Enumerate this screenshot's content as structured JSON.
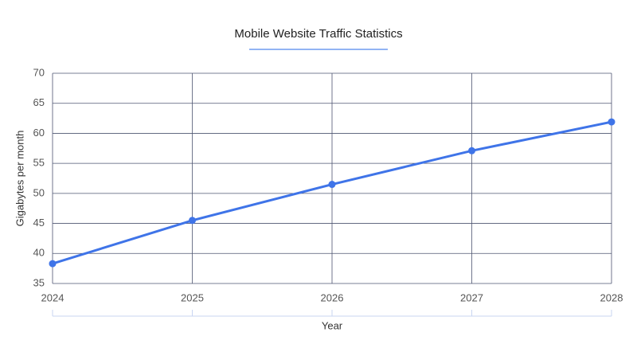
{
  "chart_data": {
    "type": "line",
    "title": "Mobile Website Traffic Statistics",
    "x_label": "Year",
    "y_label": "Gigabytes per month",
    "x": [
      2024,
      2025,
      2026,
      2027,
      2028
    ],
    "series": [
      {
        "name": "Gigabytes per month",
        "color": "#3f74e8",
        "values": [
          38.3,
          45.5,
          51.5,
          57.1,
          61.9
        ]
      }
    ],
    "xlim": [
      2024,
      2028
    ],
    "xticks": [
      2024,
      2025,
      2026,
      2027,
      2028
    ],
    "ylim": [
      35,
      70
    ],
    "yticks": [
      35,
      40,
      45,
      50,
      55,
      60,
      65,
      70
    ],
    "grid": true
  }
}
